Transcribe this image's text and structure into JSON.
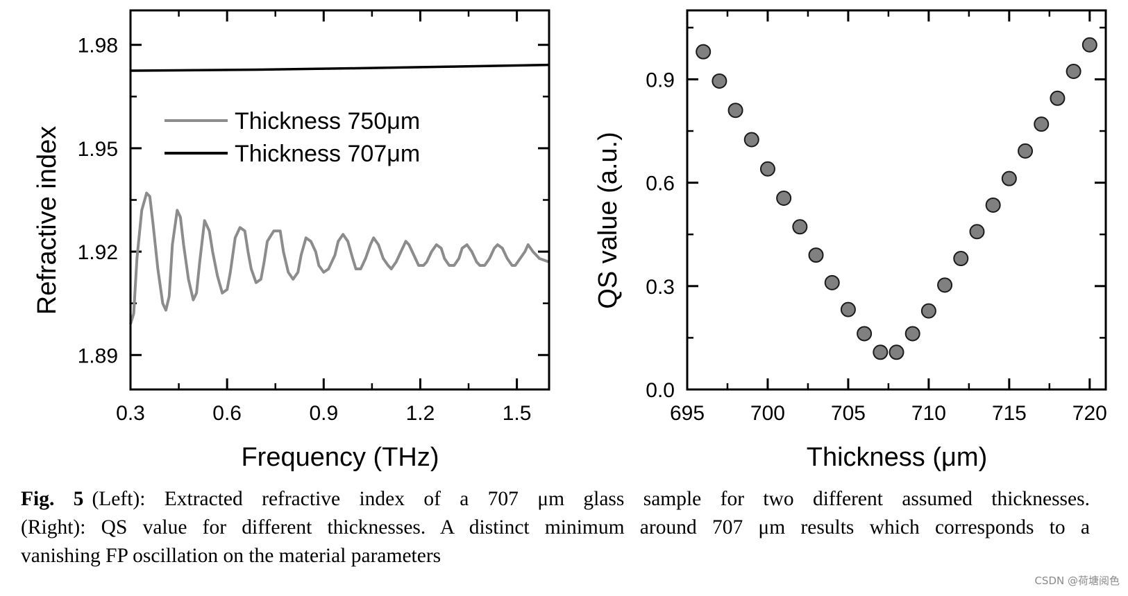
{
  "chart_data": [
    {
      "type": "line",
      "xlabel": "Frequency (THz)",
      "ylabel": "Refractive index",
      "xlim": [
        0.3,
        1.6
      ],
      "ylim": [
        1.88,
        1.99
      ],
      "xticks": [
        0.3,
        0.6,
        0.9,
        1.2,
        1.5
      ],
      "xtick_labels": [
        "0.3",
        "0.6",
        "0.9",
        "1.2",
        "1.5"
      ],
      "yticks": [
        1.89,
        1.92,
        1.95,
        1.98
      ],
      "ytick_labels": [
        "1.89",
        "1.92",
        "1.95",
        "1.98"
      ],
      "legend": "upper-center",
      "series": [
        {
          "name": "Thickness 750μm",
          "color": "#8c8c8c",
          "x": [
            0.3,
            0.31,
            0.32,
            0.335,
            0.35,
            0.36,
            0.37,
            0.385,
            0.4,
            0.41,
            0.42,
            0.43,
            0.445,
            0.455,
            0.465,
            0.48,
            0.495,
            0.505,
            0.515,
            0.53,
            0.545,
            0.555,
            0.57,
            0.585,
            0.6,
            0.61,
            0.625,
            0.64,
            0.655,
            0.665,
            0.675,
            0.69,
            0.705,
            0.715,
            0.725,
            0.745,
            0.765,
            0.775,
            0.79,
            0.805,
            0.82,
            0.83,
            0.845,
            0.86,
            0.875,
            0.885,
            0.9,
            0.915,
            0.935,
            0.945,
            0.96,
            0.975,
            0.99,
            1.0,
            1.015,
            1.03,
            1.045,
            1.055,
            1.07,
            1.085,
            1.1,
            1.11,
            1.125,
            1.14,
            1.155,
            1.165,
            1.18,
            1.195,
            1.21,
            1.22,
            1.235,
            1.25,
            1.265,
            1.275,
            1.29,
            1.305,
            1.32,
            1.33,
            1.345,
            1.36,
            1.375,
            1.385,
            1.4,
            1.415,
            1.43,
            1.44,
            1.455,
            1.47,
            1.485,
            1.495,
            1.51,
            1.525,
            1.535,
            1.55,
            1.57,
            1.6
          ],
          "y": [
            1.899,
            1.902,
            1.918,
            1.932,
            1.937,
            1.936,
            1.928,
            1.915,
            1.905,
            1.903,
            1.907,
            1.922,
            1.932,
            1.93,
            1.922,
            1.912,
            1.906,
            1.908,
            1.917,
            1.929,
            1.926,
            1.92,
            1.913,
            1.908,
            1.909,
            1.914,
            1.924,
            1.927,
            1.926,
            1.92,
            1.915,
            1.911,
            1.912,
            1.917,
            1.923,
            1.926,
            1.926,
            1.92,
            1.914,
            1.912,
            1.914,
            1.919,
            1.924,
            1.923,
            1.92,
            1.916,
            1.914,
            1.915,
            1.919,
            1.923,
            1.925,
            1.923,
            1.918,
            1.915,
            1.915,
            1.918,
            1.922,
            1.924,
            1.922,
            1.918,
            1.916,
            1.915,
            1.917,
            1.92,
            1.923,
            1.922,
            1.919,
            1.916,
            1.916,
            1.917,
            1.92,
            1.922,
            1.921,
            1.918,
            1.916,
            1.916,
            1.918,
            1.921,
            1.922,
            1.92,
            1.917,
            1.916,
            1.916,
            1.918,
            1.921,
            1.922,
            1.921,
            1.918,
            1.916,
            1.916,
            1.918,
            1.92,
            1.922,
            1.92,
            1.918,
            1.917
          ]
        },
        {
          "name": "Thickness 707μm",
          "color": "#000000",
          "x": [
            0.3,
            0.7,
            1.0,
            1.3,
            1.6
          ],
          "y": [
            1.9725,
            1.9728,
            1.9732,
            1.9737,
            1.9742
          ]
        }
      ]
    },
    {
      "type": "scatter",
      "xlabel": "Thickness (μm)",
      "ylabel": "QS value (a.u.)",
      "xlim": [
        695,
        721
      ],
      "ylim": [
        0.0,
        1.1
      ],
      "xticks": [
        695,
        700,
        705,
        710,
        715,
        720
      ],
      "xtick_labels": [
        "695",
        "700",
        "705",
        "710",
        "715",
        "720"
      ],
      "yticks": [
        0.0,
        0.3,
        0.6,
        0.9
      ],
      "ytick_labels": [
        "0.0",
        "0.3",
        "0.6",
        "0.9"
      ],
      "marker_color": "#808080",
      "x": [
        696,
        697,
        698,
        699,
        700,
        701,
        702,
        703,
        704,
        705,
        706,
        707,
        708,
        709,
        710,
        711,
        712,
        713,
        714,
        715,
        716,
        717,
        718,
        719,
        720
      ],
      "y": [
        0.98,
        0.895,
        0.81,
        0.725,
        0.64,
        0.555,
        0.472,
        0.39,
        0.31,
        0.232,
        0.162,
        0.108,
        0.108,
        0.162,
        0.228,
        0.303,
        0.38,
        0.458,
        0.535,
        0.612,
        0.692,
        0.77,
        0.845,
        0.923,
        1.0
      ]
    }
  ],
  "caption": {
    "fig_label": "Fig. 5",
    "lines": [
      "(Left): Extracted refractive index of a 707 μm glass sample for two different assumed thicknesses.",
      "(Right): QS value for different thicknesses. A distinct minimum around 707 μm results which corresponds to a",
      "vanishing FP oscillation on the material parameters"
    ]
  },
  "watermark": "CSDN @荷塘阅色"
}
